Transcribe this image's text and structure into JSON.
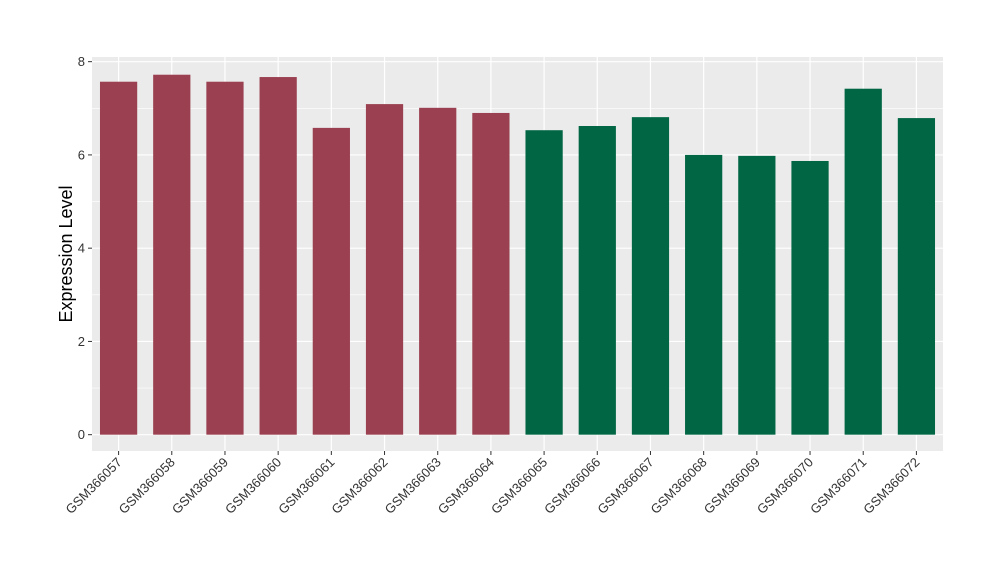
{
  "chart_data": {
    "type": "bar",
    "title": "",
    "xlabel": "",
    "ylabel": "Expression Level",
    "ylim": [
      -0.35,
      8.1
    ],
    "yticks": [
      0,
      2,
      4,
      6,
      8
    ],
    "grid": true,
    "legend": "none",
    "colors": {
      "group_a": "#9A4050",
      "group_b": "#006644",
      "panel": "#EBEBEB",
      "grid": "#FFFFFF"
    },
    "categories": [
      "GSM366057",
      "GSM366058",
      "GSM366059",
      "GSM366060",
      "GSM366061",
      "GSM366062",
      "GSM366063",
      "GSM366064",
      "GSM366065",
      "GSM366066",
      "GSM366067",
      "GSM366068",
      "GSM366069",
      "GSM366070",
      "GSM366071",
      "GSM366072"
    ],
    "values": [
      7.57,
      7.72,
      7.57,
      7.67,
      6.58,
      7.09,
      7.01,
      6.9,
      6.53,
      6.62,
      6.81,
      6.0,
      5.98,
      5.87,
      7.42,
      6.79
    ],
    "groups": [
      "a",
      "a",
      "a",
      "a",
      "a",
      "a",
      "a",
      "a",
      "b",
      "b",
      "b",
      "b",
      "b",
      "b",
      "b",
      "b"
    ]
  }
}
